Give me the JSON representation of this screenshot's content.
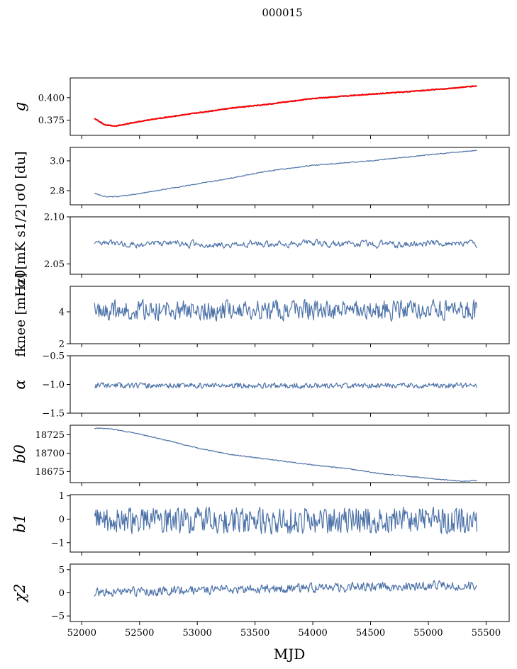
{
  "figure": {
    "title": "000015",
    "xlabel": "MJD"
  },
  "chart_data": [
    {
      "type": "line",
      "id": "g",
      "ylabel": "g",
      "ylim": [
        0.358,
        0.422
      ],
      "yticks": [
        0.375,
        0.4
      ],
      "ytick_labels": [
        "0.375",
        "0.400"
      ],
      "series": [
        {
          "color": "#4c72a8",
          "kind": "trend",
          "knots": [
            [
              52110,
              0.377
            ],
            [
              52200,
              0.3695
            ],
            [
              52300,
              0.3685
            ],
            [
              52500,
              0.3735
            ],
            [
              52800,
              0.3795
            ],
            [
              53000,
              0.383
            ],
            [
              53300,
              0.3885
            ],
            [
              53600,
              0.3925
            ],
            [
              54000,
              0.399
            ],
            [
              54400,
              0.403
            ],
            [
              54800,
              0.4065
            ],
            [
              55200,
              0.4105
            ],
            [
              55420,
              0.413
            ]
          ],
          "noise": 0.0008
        },
        {
          "color": "#ff0000",
          "kind": "trend",
          "knots": [
            [
              52110,
              0.377
            ],
            [
              52200,
              0.3695
            ],
            [
              52300,
              0.3685
            ],
            [
              52500,
              0.3735
            ],
            [
              52800,
              0.3795
            ],
            [
              53000,
              0.383
            ],
            [
              53300,
              0.3885
            ],
            [
              53600,
              0.3925
            ],
            [
              54000,
              0.399
            ],
            [
              54400,
              0.403
            ],
            [
              54800,
              0.4065
            ],
            [
              55200,
              0.4105
            ],
            [
              55420,
              0.413
            ]
          ],
          "noise": 0.0005
        }
      ]
    },
    {
      "type": "line",
      "id": "sigma0",
      "ylabel": "σ0 [du]",
      "ylim": [
        2.705,
        3.09
      ],
      "yticks": [
        2.8,
        3.0
      ],
      "ytick_labels": [
        "2.8",
        "3.0"
      ],
      "series": [
        {
          "color": "#4c72a8",
          "kind": "trend",
          "knots": [
            [
              52120,
              2.78
            ],
            [
              52200,
              2.76
            ],
            [
              52300,
              2.76
            ],
            [
              52500,
              2.78
            ],
            [
              52800,
              2.82
            ],
            [
              53200,
              2.87
            ],
            [
              53600,
              2.93
            ],
            [
              54000,
              2.97
            ],
            [
              54500,
              3.0
            ],
            [
              55000,
              3.04
            ],
            [
              55420,
              3.07
            ]
          ],
          "noise": 0.003
        }
      ]
    },
    {
      "type": "line",
      "id": "sigma0-phys",
      "ylabel": "σ0[mK s1/2]",
      "ylim": [
        2.039,
        2.1
      ],
      "yticks": [
        2.05,
        2.1
      ],
      "ytick_labels": [
        "2.05",
        "2.10"
      ],
      "series": [
        {
          "color": "#4c72a8",
          "kind": "noise",
          "mean": 2.071,
          "amp": 0.0045,
          "smooth": 0.6,
          "seed": 3
        }
      ]
    },
    {
      "type": "line",
      "id": "fknee",
      "ylabel": "fknee [mHz]",
      "ylim": [
        2.0,
        5.6
      ],
      "yticks": [
        2,
        4
      ],
      "ytick_labels": [
        "2",
        "4"
      ],
      "series": [
        {
          "color": "#4c72a8",
          "kind": "noise",
          "mean": 4.1,
          "amp": 0.45,
          "smooth": 0.2,
          "seed": 7
        }
      ]
    },
    {
      "type": "line",
      "id": "alpha",
      "ylabel": "α",
      "ylim": [
        -1.5,
        -0.5
      ],
      "yticks": [
        -1.5,
        -1.0,
        -0.5
      ],
      "ytick_labels": [
        "−1.5",
        "−1.0",
        "−0.5"
      ],
      "series": [
        {
          "color": "#4c72a8",
          "kind": "noise",
          "mean": -1.02,
          "amp": 0.035,
          "smooth": 0.2,
          "seed": 11
        }
      ]
    },
    {
      "type": "line",
      "id": "b0",
      "ylabel": "b0",
      "ylim": [
        18660,
        18738
      ],
      "yticks": [
        18675,
        18700,
        18725
      ],
      "ytick_labels": [
        "18675",
        "18700",
        "18725"
      ],
      "series": [
        {
          "color": "#4c72a8",
          "kind": "trend",
          "knots": [
            [
              52120,
              18734
            ],
            [
              52250,
              18733
            ],
            [
              52500,
              18726
            ],
            [
              52800,
              18715
            ],
            [
              53000,
              18707
            ],
            [
              53300,
              18698
            ],
            [
              53600,
              18692
            ],
            [
              54000,
              18684
            ],
            [
              54300,
              18679
            ],
            [
              54600,
              18672
            ],
            [
              55000,
              18666
            ],
            [
              55200,
              18663
            ],
            [
              55300,
              18662
            ],
            [
              55420,
              18663
            ]
          ],
          "noise": 0.6
        }
      ]
    },
    {
      "type": "line",
      "id": "b1",
      "ylabel": "b1",
      "ylim": [
        -1.4,
        1.05
      ],
      "yticks": [
        -1,
        0,
        1
      ],
      "ytick_labels": [
        "−1",
        "0",
        "1"
      ],
      "series": [
        {
          "color": "#4c72a8",
          "kind": "noise",
          "mean": -0.05,
          "amp": 0.38,
          "smooth": 0.1,
          "seed": 19
        }
      ]
    },
    {
      "type": "line",
      "id": "chi2",
      "ylabel": "χ2",
      "ylim": [
        -6.2,
        6.2
      ],
      "yticks": [
        -5,
        0,
        5
      ],
      "ytick_labels": [
        "−5",
        "0",
        "5"
      ],
      "series": [
        {
          "color": "#4c72a8",
          "kind": "trendnoise",
          "knots": [
            [
              52120,
              0.0
            ],
            [
              53000,
              0.6
            ],
            [
              54000,
              1.0
            ],
            [
              55000,
              1.5
            ],
            [
              55420,
              1.7
            ]
          ],
          "amp": 0.8,
          "smooth": 0.3,
          "seed": 23
        }
      ]
    }
  ],
  "xaxis": {
    "xlim": [
      51900,
      55700
    ],
    "data_range": [
      52110,
      55420
    ],
    "ticks": [
      52000,
      52500,
      53000,
      53500,
      54000,
      54500,
      55000,
      55500
    ],
    "tick_labels": [
      "52000",
      "52500",
      "53000",
      "53500",
      "54000",
      "54500",
      "55000",
      "55500"
    ]
  }
}
